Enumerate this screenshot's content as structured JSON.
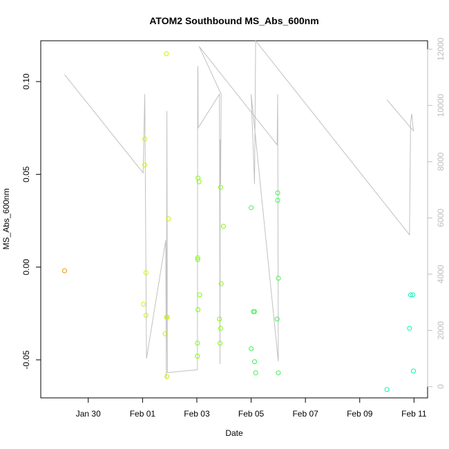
{
  "chart_data": {
    "type": "scatter",
    "title": "ATOM2 Southbound MS_Abs_600nm",
    "xlabel": "Date",
    "ylabel": "MS_Abs_600nm",
    "x_is_date": true,
    "xlim": [
      "2017-01-28T06:00",
      "2017-02-11T12:00"
    ],
    "ylim": [
      -0.0705,
      0.122
    ],
    "y2lim": [
      -400,
      12300
    ],
    "x_ticks": [
      {
        "x": "2017-01-30",
        "label": "Jan 30"
      },
      {
        "x": "2017-02-01",
        "label": "Feb 01"
      },
      {
        "x": "2017-02-03",
        "label": "Feb 03"
      },
      {
        "x": "2017-02-05",
        "label": "Feb 05"
      },
      {
        "x": "2017-02-07",
        "label": "Feb 07"
      },
      {
        "x": "2017-02-09",
        "label": "Feb 09"
      },
      {
        "x": "2017-02-11",
        "label": "Feb 11"
      }
    ],
    "y_ticks": [
      {
        "y": -0.05,
        "label": "-0.05"
      },
      {
        "y": 0.0,
        "label": "0.00"
      },
      {
        "y": 0.05,
        "label": "0.05"
      },
      {
        "y": 0.1,
        "label": "0.10"
      }
    ],
    "y2_ticks": [
      {
        "y": 0,
        "label": "0"
      },
      {
        "y": 2000,
        "label": "2000"
      },
      {
        "y": 4000,
        "label": "4000"
      },
      {
        "y": 6000,
        "label": "6000"
      },
      {
        "y": 8000,
        "label": "8000"
      },
      {
        "y": 10000,
        "label": "10000"
      },
      {
        "y": 12000,
        "label": "12000"
      }
    ],
    "points": [
      {
        "x": "2017-01-29T03:00",
        "y": -0.002,
        "color": "#ff8c00"
      },
      {
        "x": "2017-02-01T00:50",
        "y": -0.02,
        "color": "#d4f000"
      },
      {
        "x": "2017-02-01T02:00",
        "y": 0.069,
        "color": "#d4f000"
      },
      {
        "x": "2017-02-01T02:00",
        "y": 0.055,
        "color": "#d4f000"
      },
      {
        "x": "2017-02-01T03:00",
        "y": -0.003,
        "color": "#d4f000"
      },
      {
        "x": "2017-02-01T03:00",
        "y": -0.026,
        "color": "#d4f000"
      },
      {
        "x": "2017-02-01T20:00",
        "y": -0.036,
        "color": "#c8f000"
      },
      {
        "x": "2017-02-01T21:00",
        "y": 0.115,
        "color": "#c8f000"
      },
      {
        "x": "2017-02-01T21:00",
        "y": -0.027,
        "color": "#c8f000"
      },
      {
        "x": "2017-02-01T22:00",
        "y": -0.027,
        "color": "#c8f000"
      },
      {
        "x": "2017-02-01T21:30",
        "y": -0.059,
        "color": "#c8f000"
      },
      {
        "x": "2017-02-01T23:00",
        "y": 0.026,
        "color": "#c8f000"
      },
      {
        "x": "2017-02-03T00:30",
        "y": -0.048,
        "color": "#7cfc00"
      },
      {
        "x": "2017-02-03T00:30",
        "y": -0.041,
        "color": "#7cfc00"
      },
      {
        "x": "2017-02-03T00:50",
        "y": 0.005,
        "color": "#7cfc00"
      },
      {
        "x": "2017-02-03T00:50",
        "y": 0.004,
        "color": "#7cfc00"
      },
      {
        "x": "2017-02-03T01:00",
        "y": -0.023,
        "color": "#7cfc00"
      },
      {
        "x": "2017-02-03T01:00",
        "y": 0.048,
        "color": "#7cfc00"
      },
      {
        "x": "2017-02-03T02:00",
        "y": 0.046,
        "color": "#7cfc00"
      },
      {
        "x": "2017-02-03T02:30",
        "y": -0.015,
        "color": "#7cfc00"
      },
      {
        "x": "2017-02-03T20:00",
        "y": -0.028,
        "color": "#7cfc00"
      },
      {
        "x": "2017-02-03T20:30",
        "y": -0.041,
        "color": "#7cfc00"
      },
      {
        "x": "2017-02-03T21:00",
        "y": -0.033,
        "color": "#7cfc00"
      },
      {
        "x": "2017-02-03T21:00",
        "y": 0.043,
        "color": "#7cfc00"
      },
      {
        "x": "2017-02-03T21:30",
        "y": -0.009,
        "color": "#7cfc00"
      },
      {
        "x": "2017-02-03T23:30",
        "y": 0.022,
        "color": "#7cfc00"
      },
      {
        "x": "2017-02-05T00:00",
        "y": 0.032,
        "color": "#3cf050"
      },
      {
        "x": "2017-02-05T00:00",
        "y": -0.044,
        "color": "#3cf050"
      },
      {
        "x": "2017-02-05T02:00",
        "y": -0.024,
        "color": "#3cf050"
      },
      {
        "x": "2017-02-05T03:00",
        "y": -0.024,
        "color": "#3cf050"
      },
      {
        "x": "2017-02-05T03:00",
        "y": -0.051,
        "color": "#3cf050"
      },
      {
        "x": "2017-02-05T04:00",
        "y": -0.057,
        "color": "#3cf050"
      },
      {
        "x": "2017-02-05T23:00",
        "y": -0.028,
        "color": "#3cf050"
      },
      {
        "x": "2017-02-05T23:30",
        "y": 0.04,
        "color": "#3cf050"
      },
      {
        "x": "2017-02-05T23:30",
        "y": 0.036,
        "color": "#3cf050"
      },
      {
        "x": "2017-02-06T00:00",
        "y": -0.006,
        "color": "#3cf050"
      },
      {
        "x": "2017-02-06T00:00",
        "y": -0.057,
        "color": "#3cf050"
      },
      {
        "x": "2017-02-10T00:00",
        "y": -0.066,
        "color": "#00f5b4"
      },
      {
        "x": "2017-02-10T20:00",
        "y": -0.033,
        "color": "#00f5b4"
      },
      {
        "x": "2017-02-10T21:00",
        "y": -0.015,
        "color": "#00f5b4"
      },
      {
        "x": "2017-02-10T23:00",
        "y": -0.015,
        "color": "#00f5b4"
      },
      {
        "x": "2017-02-10T23:30",
        "y": -0.056,
        "color": "#00f5b4"
      }
    ],
    "line_series": [
      {
        "axis": "right",
        "color": "#c0c0c0",
        "points": [
          {
            "x": "2017-01-29T03:00",
            "y": 11100
          },
          {
            "x": "2017-02-01T00:30",
            "y": 7600
          },
          {
            "x": "2017-02-01T02:00",
            "y": 10400
          },
          {
            "x": "2017-02-01T03:30",
            "y": 1000
          },
          {
            "x": "2017-02-01T20:30",
            "y": 5200
          },
          {
            "x": "2017-02-01T21:00",
            "y": 300
          },
          {
            "x": "2017-02-01T21:30",
            "y": 9800
          },
          {
            "x": "2017-02-01T22:00",
            "y": 500
          },
          {
            "x": "2017-02-03T00:30",
            "y": 600
          },
          {
            "x": "2017-02-03T00:40",
            "y": 9200
          },
          {
            "x": "2017-02-03T00:50",
            "y": 11400
          },
          {
            "x": "2017-02-03T01:00",
            "y": 11200
          },
          {
            "x": "2017-02-03T01:10",
            "y": 9200
          },
          {
            "x": "2017-02-03T20:00",
            "y": 10400
          },
          {
            "x": "2017-02-03T20:30",
            "y": 800
          },
          {
            "x": "2017-02-03T20:45",
            "y": 8800
          },
          {
            "x": "2017-02-03T21:00",
            "y": 7200
          },
          {
            "x": "2017-02-03T21:30",
            "y": 10400
          },
          {
            "x": "2017-02-03T02:00",
            "y": 12100
          },
          {
            "x": "2017-02-05T23:00",
            "y": 8600
          },
          {
            "x": "2017-02-05T23:30",
            "y": 10400
          },
          {
            "x": "2017-02-06T00:00",
            "y": 900
          },
          {
            "x": "2017-02-05T00:00",
            "y": 10400
          },
          {
            "x": "2017-02-05T03:00",
            "y": 7200
          },
          {
            "x": "2017-02-05T04:00",
            "y": 12300
          },
          {
            "x": "2017-02-10T20:00",
            "y": 5400
          },
          {
            "x": "2017-02-10T21:00",
            "y": 9400
          },
          {
            "x": "2017-02-10T22:00",
            "y": 9700
          },
          {
            "x": "2017-02-10T23:30",
            "y": 9100
          },
          {
            "x": "2017-02-10T00:00",
            "y": 10200
          }
        ]
      }
    ]
  }
}
